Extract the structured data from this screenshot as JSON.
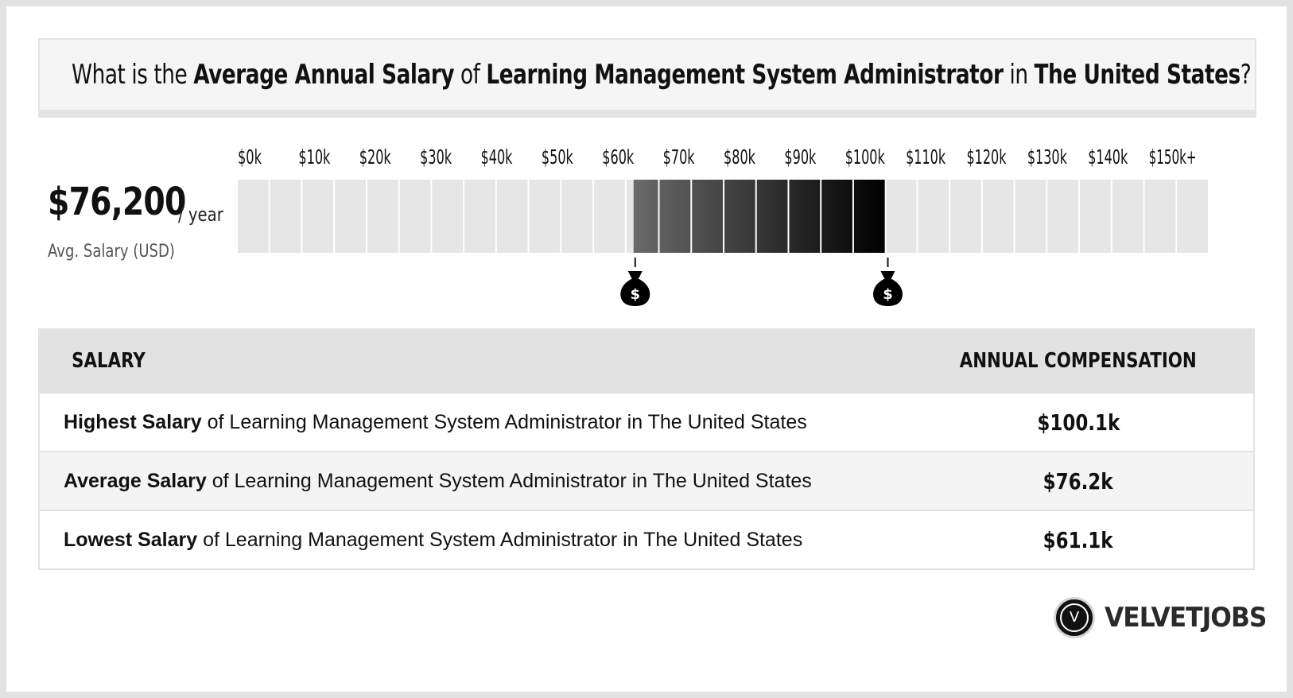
{
  "title": {
    "prefix": "What is the ",
    "metric": "Average Annual Salary",
    "of": " of ",
    "job": "Learning Management System Administrator",
    "in": " in ",
    "location": "The United States",
    "suffix": "?"
  },
  "average": {
    "value": "$76,200",
    "unit": "/ year",
    "label": "Avg. Salary (USD)"
  },
  "chart_data": {
    "type": "bar",
    "tick_labels": [
      "$0k",
      "$10k",
      "$20k",
      "$30k",
      "$40k",
      "$50k",
      "$60k",
      "$70k",
      "$80k",
      "$90k",
      "$100k",
      "$110k",
      "$120k",
      "$130k",
      "$140k",
      "$150k+"
    ],
    "x_unit": "USD thousands",
    "xlim": [
      0,
      150
    ],
    "range_low": 61.1,
    "range_high": 100.1,
    "average": 76.2,
    "colors": {
      "empty": "#e6e6e6",
      "range_start": "#6a6a6a",
      "range_end": "#000000"
    },
    "marker_icon": "money-bag-icon",
    "marker_symbol": "$"
  },
  "table": {
    "headers": [
      "SALARY",
      "ANNUAL COMPENSATION"
    ],
    "rows": [
      {
        "label_bold": "Highest Salary",
        "label_rest": " of Learning Management System Administrator in The United States",
        "value": "$100.1k"
      },
      {
        "label_bold": "Average Salary",
        "label_rest": " of Learning Management System Administrator in The United States",
        "value": "$76.2k"
      },
      {
        "label_bold": "Lowest Salary",
        "label_rest": " of Learning Management System Administrator in The United States",
        "value": "$61.1k"
      }
    ]
  },
  "logo": {
    "letter": "V",
    "text": "VELVETJOBS"
  }
}
